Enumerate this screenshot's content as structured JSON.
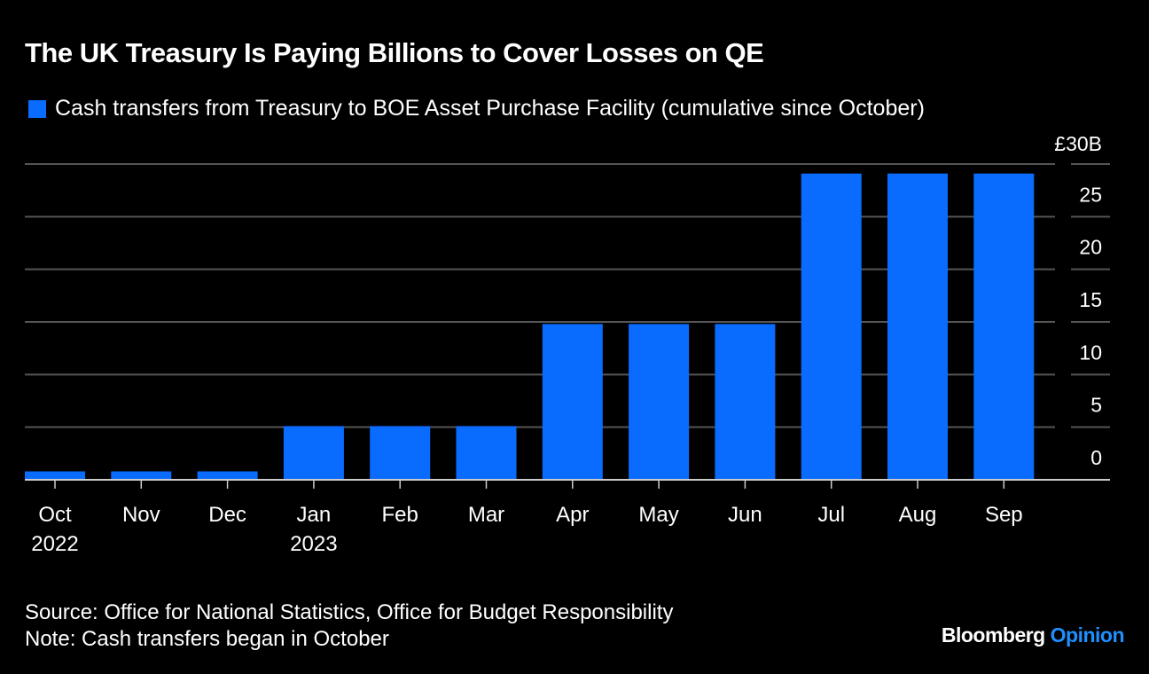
{
  "title": "The UK Treasury Is Paying Billions to Cover Losses on QE",
  "footer": {
    "source": "Source: Office for National Statistics, Office for Budget Responsibility",
    "note": "Note: Cash transfers began in October"
  },
  "brand": {
    "name": "Bloomberg",
    "suffix": "Opinion",
    "suffix_color": "#1e90ff"
  },
  "chart_data": {
    "type": "bar",
    "categories": [
      "Oct 2022",
      "Nov",
      "Dec",
      "Jan 2023",
      "Feb",
      "Mar",
      "Apr",
      "May",
      "Jun",
      "Jul",
      "Aug",
      "Sep"
    ],
    "tick_labels": [
      [
        "Oct",
        "2022"
      ],
      [
        "Nov"
      ],
      [
        "Dec"
      ],
      [
        "Jan",
        "2023"
      ],
      [
        "Feb"
      ],
      [
        "Mar"
      ],
      [
        "Apr"
      ],
      [
        "May"
      ],
      [
        "Jun"
      ],
      [
        "Jul"
      ],
      [
        "Aug"
      ],
      [
        "Sep"
      ]
    ],
    "series": [
      {
        "name": "Cash transfers from Treasury to BOE Asset Purchase Facility (cumulative since October)",
        "values": [
          0.8,
          0.8,
          0.8,
          5.1,
          5.1,
          5.1,
          14.8,
          14.8,
          14.8,
          29.1,
          29.1,
          29.1
        ],
        "color": "#0a6cff"
      }
    ],
    "ylim": [
      0,
      30
    ],
    "yticks": [
      0,
      5,
      10,
      15,
      20,
      25,
      30
    ],
    "ytick_labels": [
      "0",
      "5",
      "10",
      "15",
      "20",
      "25",
      "£30B"
    ],
    "yaxis_side": "right",
    "grid": true,
    "legend": "top-left"
  }
}
